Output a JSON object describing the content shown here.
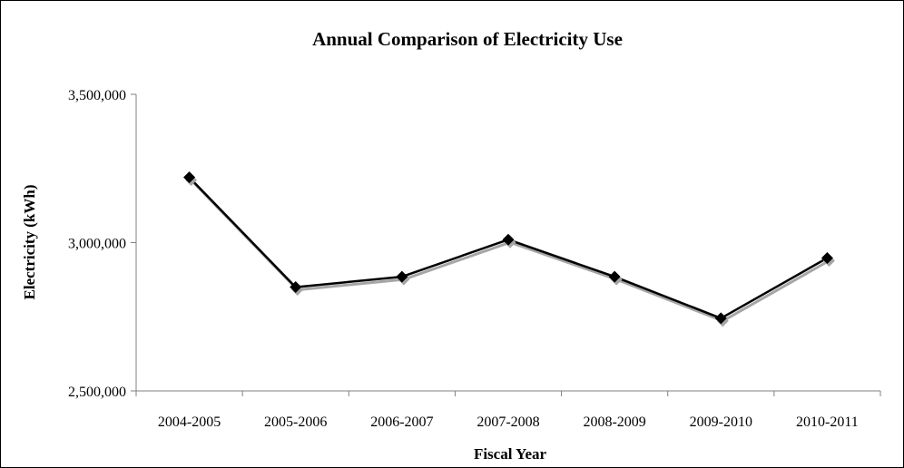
{
  "chart_data": {
    "type": "line",
    "title": "Annual Comparison of  Electricity Use",
    "xlabel": "Fiscal Year",
    "ylabel": "Electricity (kWh)",
    "categories": [
      "2004-2005",
      "2005-2006",
      "2006-2007",
      "2007-2008",
      "2008-2009",
      "2009-2010",
      "2010-2011"
    ],
    "series": [
      {
        "values": [
          3220000,
          2850000,
          2885000,
          3010000,
          2885000,
          2745000,
          2948000
        ]
      }
    ],
    "ylim": [
      2500000,
      3500000
    ],
    "yticks": [
      2500000,
      3000000,
      3500000
    ],
    "ytick_labels": [
      "2,500,000",
      "3,000,000",
      "3,500,000"
    ],
    "grid": false,
    "legend": false,
    "marker": "diamond",
    "colors": {
      "line": "#000000",
      "shadow": "#a6a6a6",
      "axis": "#808080",
      "marker": "#000000"
    }
  }
}
